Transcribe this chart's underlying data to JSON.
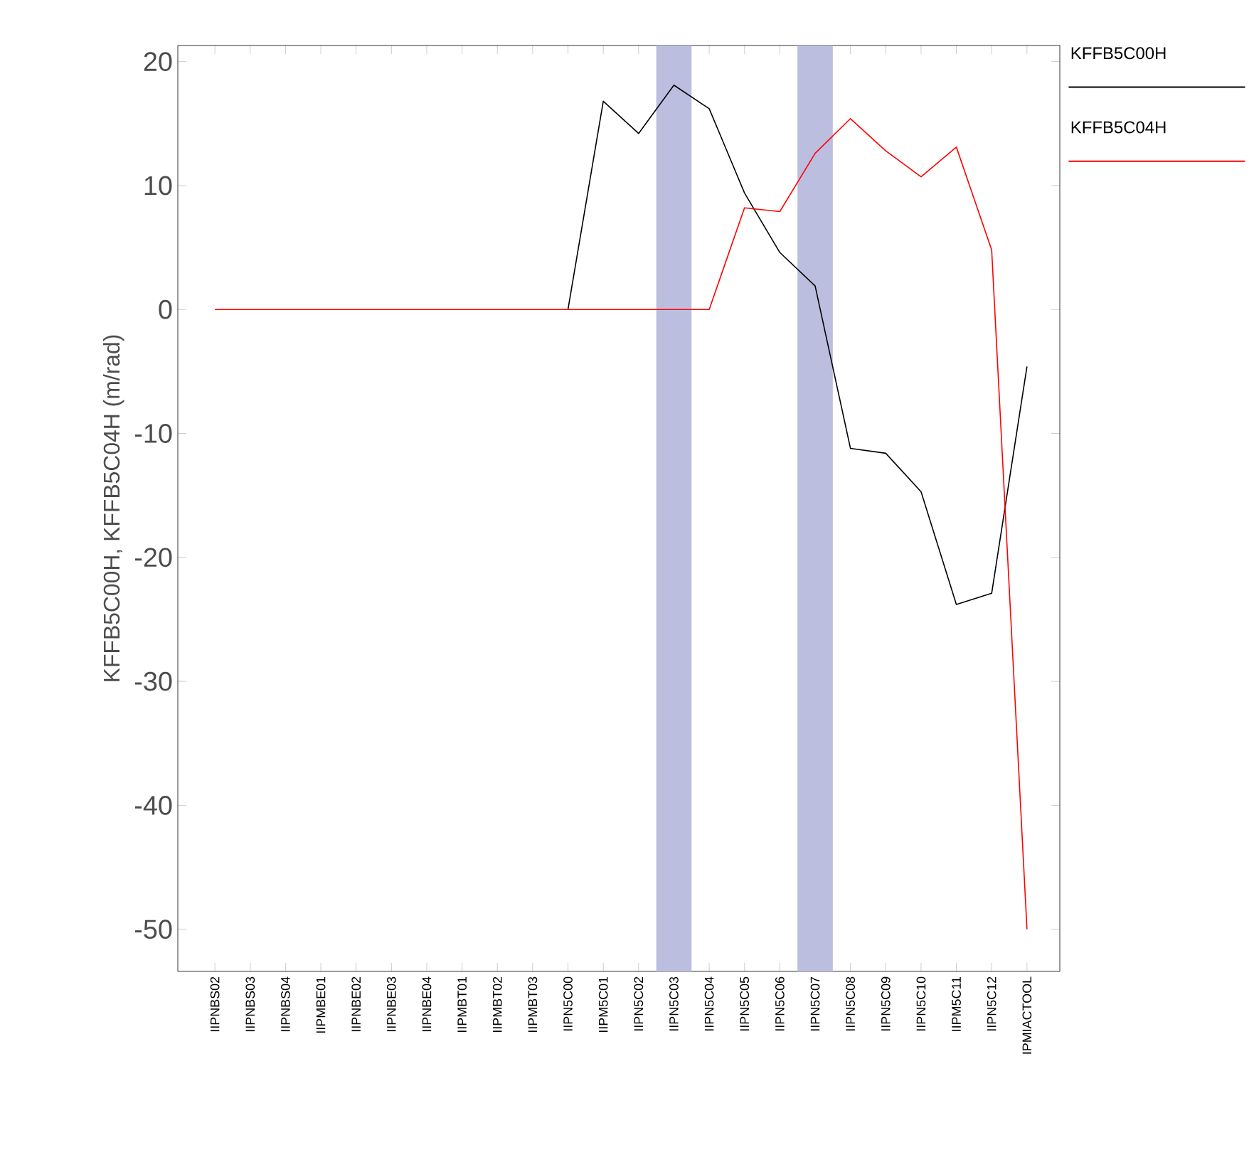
{
  "chart_data": {
    "type": "line",
    "ylabel": "KFFB5C00H, KFFB5C04H  (m/rad)",
    "categories": [
      "IIPNBS02",
      "IIPNBS03",
      "IIPNBS04",
      "IIPMBE01",
      "IIPNBE02",
      "IIPNBE03",
      "IIPNBE04",
      "IIPMBT01",
      "IIPMBT02",
      "IIPMBT03",
      "IIPN5C00",
      "IIPM5C01",
      "IIPN5C02",
      "IIPN5C03",
      "IIPN5C04",
      "IIPN5C05",
      "IIPN5C06",
      "IIPN5C07",
      "IIPN5C08",
      "IIPN5C09",
      "IIPN5C10",
      "IIPM5C11",
      "IIPN5C12",
      "IPMIACTOOL"
    ],
    "series": [
      {
        "name": "KFFB5C00H",
        "color": "#000000",
        "values": [
          null,
          null,
          null,
          null,
          null,
          null,
          null,
          null,
          null,
          null,
          0,
          16.8,
          14.2,
          18.1,
          16.2,
          9.4,
          4.6,
          1.9,
          -11.2,
          -11.6,
          -14.7,
          -23.8,
          -22.9,
          -4.6
        ]
      },
      {
        "name": "KFFB5C04H",
        "color": "#ff0000",
        "values": [
          0,
          0,
          0,
          0,
          0,
          0,
          0,
          0,
          0,
          0,
          0,
          0,
          0,
          0,
          0,
          8.2,
          7.9,
          12.6,
          15.4,
          12.8,
          10.7,
          13.1,
          4.8,
          -50
        ]
      }
    ],
    "ylim": [
      -53.4,
      21.3
    ],
    "yticks": [
      -50,
      -40,
      -30,
      -20,
      -10,
      0,
      10,
      20
    ],
    "bands": [
      {
        "axis": "x",
        "from": "IIPN5C03",
        "to": "IIPN5C03",
        "color": "#bcbedf"
      },
      {
        "axis": "x",
        "from": "IIPN5C07",
        "to": "IIPN5C07",
        "color": "#bcbedf"
      }
    ],
    "legend": "top right"
  }
}
